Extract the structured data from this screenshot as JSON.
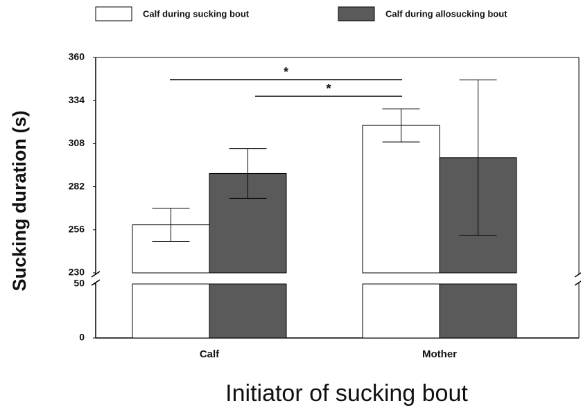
{
  "chart_data": {
    "type": "bar",
    "categories": [
      "Calf",
      "Mother"
    ],
    "series": [
      {
        "name": "Calf during sucking bout",
        "color": "#ffffff",
        "values": [
          259,
          319
        ],
        "errors": [
          10,
          10
        ]
      },
      {
        "name": "Calf during allosucking bout",
        "color": "#5a5a5a",
        "values": [
          290,
          299.5
        ],
        "errors": [
          15,
          47
        ]
      }
    ],
    "ylim": [
      230,
      360
    ],
    "yticks": [
      230,
      256,
      282,
      308,
      334,
      360
    ],
    "ylim_lower": [
      0,
      50
    ],
    "yticks_lower": [
      0,
      50
    ],
    "y_label": "Sucking duration (s)",
    "x_label": "Initiator of sucking bout",
    "annotations": [
      "*",
      "*"
    ],
    "legend": "top"
  }
}
